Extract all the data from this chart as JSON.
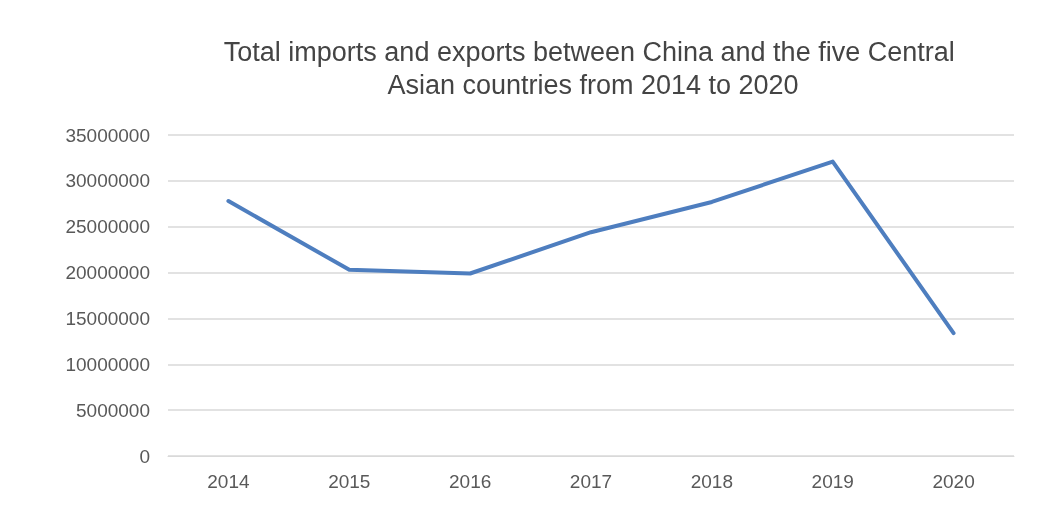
{
  "chart_data": {
    "type": "line",
    "title": "Total imports and exports between China and the five Central Asian countries from 2014 to 2020",
    "categories": [
      "2014",
      "2015",
      "2016",
      "2017",
      "2018",
      "2019",
      "2020"
    ],
    "series": [
      {
        "color": "#4e7ebf",
        "values": [
          27800000,
          20300000,
          19900000,
          24400000,
          27700000,
          32100000,
          13400000
        ]
      }
    ],
    "ylim": [
      0,
      35000000
    ],
    "yticks": [
      0,
      5000000,
      10000000,
      15000000,
      20000000,
      25000000,
      30000000,
      35000000
    ],
    "grid": "y",
    "marker": "none",
    "line_style": "solid"
  }
}
